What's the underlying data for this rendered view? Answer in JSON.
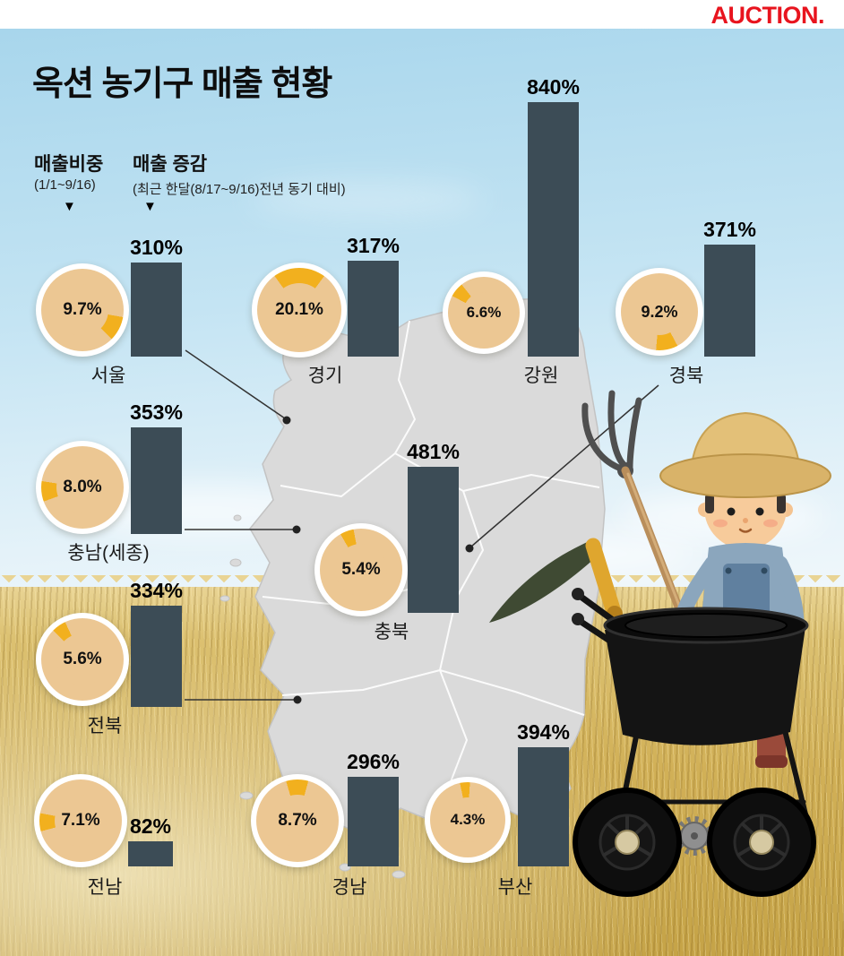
{
  "brand": {
    "logo_text": "AUCTION.",
    "logo_color": "#e8141e"
  },
  "title": "옥션 농기구 매출 현황",
  "legend": {
    "share_label": "매출비중",
    "share_period": "(1/1~9/16)",
    "growth_label": "매출 증감",
    "growth_period": "(최근 한달(8/17~9/16)전년 동기 대비)",
    "marker": "▼"
  },
  "regions": [
    {
      "name": "서울",
      "share": "9.7%",
      "share_value": 9.7,
      "growth": "310%",
      "growth_value": 310
    },
    {
      "name": "경기",
      "share": "20.1%",
      "share_value": 20.1,
      "growth": "317%",
      "growth_value": 317
    },
    {
      "name": "강원",
      "share": "6.6%",
      "share_value": 6.6,
      "growth": "840%",
      "growth_value": 840
    },
    {
      "name": "경북",
      "share": "9.2%",
      "share_value": 9.2,
      "growth": "371%",
      "growth_value": 371
    },
    {
      "name": "충남(세종)",
      "share": "8.0%",
      "share_value": 8.0,
      "growth": "353%",
      "growth_value": 353
    },
    {
      "name": "충북",
      "share": "5.4%",
      "share_value": 5.4,
      "growth": "481%",
      "growth_value": 481
    },
    {
      "name": "전북",
      "share": "5.6%",
      "share_value": 5.6,
      "growth": "334%",
      "growth_value": 334
    },
    {
      "name": "전남",
      "share": "7.1%",
      "share_value": 7.1,
      "growth": "82%",
      "growth_value": 82
    },
    {
      "name": "경남",
      "share": "8.7%",
      "share_value": 8.7,
      "growth": "296%",
      "growth_value": 296
    },
    {
      "name": "부산",
      "share": "4.3%",
      "share_value": 4.3,
      "growth": "394%",
      "growth_value": 394
    }
  ],
  "chart_data": {
    "type": "bar",
    "title": "옥션 농기구 매출 현황",
    "categories": [
      "서울",
      "경기",
      "강원",
      "경북",
      "충남(세종)",
      "충북",
      "전북",
      "전남",
      "경남",
      "부산"
    ],
    "series": [
      {
        "name": "매출비중 (1/1~9/16, %)",
        "values": [
          9.7,
          20.1,
          6.6,
          9.2,
          8.0,
          5.4,
          5.6,
          7.1,
          8.7,
          4.3
        ]
      },
      {
        "name": "매출 증감 (최근 한달 8/17~9/16, 전년 동기 대비, %)",
        "values": [
          310,
          317,
          840,
          371,
          353,
          481,
          334,
          82,
          296,
          394
        ]
      }
    ],
    "legend_position": "top-left",
    "grid": false
  },
  "colors": {
    "bar": "#3c4c56",
    "donut_ring": "#ffffff",
    "donut_fill": "#ecc793",
    "donut_accent": "#f2b01e",
    "logo": "#e8141e",
    "map_fill": "#dadada"
  }
}
